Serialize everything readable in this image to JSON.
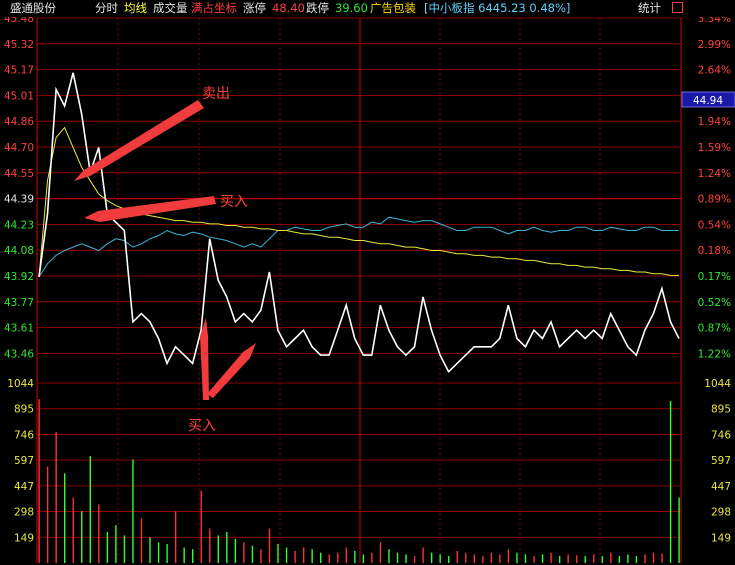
{
  "topbar": {
    "stock_name": "盛通股份",
    "timeshare": "分时",
    "avg_line": "均线",
    "volume": "成交量",
    "full_coord": "满占坐标",
    "limit_up_label": "涨停",
    "limit_up_value": "48.40",
    "limit_down_label": "跌停",
    "limit_down_value": "39.60",
    "sector": "广告包装",
    "index_info": "[中小板指 6445.23 0.48%]",
    "stats": "统计"
  },
  "current_price_tag": "44.94",
  "price_axis_left": [
    "45.48",
    "45.32",
    "45.17",
    "45.01",
    "44.86",
    "44.70",
    "44.55",
    "44.39",
    "44.23",
    "44.08",
    "43.92",
    "43.77",
    "43.61",
    "43.46"
  ],
  "pct_axis_right": [
    "3.34%",
    "2.99%",
    "2.64%",
    "2.29%",
    "1.94%",
    "1.59%",
    "1.24%",
    "0.89%",
    "0.54%",
    "0.18%",
    "0.17%",
    "0.52%",
    "0.87%",
    "1.22%"
  ],
  "volume_axis": [
    "1044",
    "895",
    "746",
    "597",
    "447",
    "298",
    "149"
  ],
  "annotations": {
    "sell": "卖出",
    "buy_top": "买入",
    "buy_bottom": "买入"
  },
  "colors": {
    "price_line": "#ffffff",
    "avg_line": "#e8e83a",
    "index_line": "#3bb5d8",
    "grid": "#b00000",
    "up_text": "#ff4040",
    "down_text": "#2ee82e",
    "arrow": "#f03c3c",
    "vol_up": "#ff3030",
    "vol_down": "#30ff30"
  },
  "chart_data": {
    "type": "line",
    "price_range": [
      43.46,
      45.48
    ],
    "volume_range": [
      0,
      1044
    ],
    "price": [
      43.92,
      44.3,
      45.05,
      44.95,
      45.15,
      44.9,
      44.55,
      44.7,
      44.3,
      44.25,
      44.2,
      43.65,
      43.7,
      43.65,
      43.55,
      43.4,
      43.5,
      43.45,
      43.4,
      43.6,
      44.15,
      43.9,
      43.8,
      43.65,
      43.7,
      43.65,
      43.72,
      43.95,
      43.6,
      43.5,
      43.55,
      43.6,
      43.5,
      43.45,
      43.45,
      43.6,
      43.75,
      43.55,
      43.45,
      43.45,
      43.75,
      43.6,
      43.5,
      43.45,
      43.5,
      43.8,
      43.6,
      43.45,
      43.35,
      43.4,
      43.45,
      43.5,
      43.5,
      43.5,
      43.55,
      43.75,
      43.55,
      43.5,
      43.6,
      43.55,
      43.65,
      43.5,
      43.55,
      43.6,
      43.55,
      43.6,
      43.55,
      43.7,
      43.6,
      43.5,
      43.45,
      43.6,
      43.7,
      43.85,
      43.65,
      43.55
    ],
    "avg": [
      43.92,
      44.5,
      44.76,
      44.82,
      44.7,
      44.58,
      44.5,
      44.42,
      44.38,
      44.35,
      44.33,
      44.31,
      44.3,
      44.29,
      44.28,
      44.27,
      44.26,
      44.26,
      44.25,
      44.25,
      44.24,
      44.24,
      44.23,
      44.23,
      44.22,
      44.22,
      44.21,
      44.21,
      44.2,
      44.2,
      44.19,
      44.18,
      44.18,
      44.17,
      44.16,
      44.16,
      44.15,
      44.14,
      44.14,
      44.13,
      44.12,
      44.12,
      44.11,
      44.1,
      44.1,
      44.09,
      44.08,
      44.08,
      44.07,
      44.06,
      44.06,
      44.05,
      44.05,
      44.04,
      44.04,
      44.03,
      44.03,
      44.02,
      44.02,
      44.01,
      44.0,
      44.0,
      43.99,
      43.99,
      43.98,
      43.98,
      43.97,
      43.97,
      43.96,
      43.96,
      43.95,
      43.95,
      43.94,
      43.94,
      43.93,
      43.93
    ],
    "index": [
      43.92,
      44.0,
      44.05,
      44.08,
      44.1,
      44.12,
      44.1,
      44.08,
      44.12,
      44.15,
      44.14,
      44.1,
      44.12,
      44.15,
      44.17,
      44.2,
      44.18,
      44.17,
      44.19,
      44.18,
      44.16,
      44.15,
      44.14,
      44.12,
      44.1,
      44.12,
      44.1,
      44.15,
      44.2,
      44.2,
      44.22,
      44.21,
      44.2,
      44.2,
      44.22,
      44.23,
      44.24,
      44.22,
      44.22,
      44.25,
      44.24,
      44.28,
      44.27,
      44.26,
      44.25,
      44.26,
      44.26,
      44.24,
      44.22,
      44.2,
      44.2,
      44.22,
      44.22,
      44.22,
      44.2,
      44.18,
      44.2,
      44.2,
      44.22,
      44.2,
      44.19,
      44.2,
      44.2,
      44.22,
      44.22,
      44.2,
      44.2,
      44.22,
      44.21,
      44.2,
      44.2,
      44.22,
      44.22,
      44.2,
      44.2,
      44.2
    ],
    "volume": [
      950,
      560,
      760,
      520,
      380,
      300,
      620,
      340,
      180,
      220,
      160,
      600,
      260,
      150,
      120,
      110,
      300,
      90,
      80,
      420,
      200,
      160,
      180,
      140,
      120,
      100,
      80,
      200,
      110,
      90,
      70,
      90,
      80,
      60,
      50,
      60,
      90,
      70,
      50,
      60,
      120,
      80,
      60,
      50,
      40,
      90,
      60,
      50,
      40,
      70,
      60,
      50,
      40,
      60,
      50,
      80,
      60,
      50,
      40,
      50,
      60,
      40,
      50,
      45,
      40,
      50,
      40,
      60,
      40,
      50,
      40,
      50,
      60,
      55,
      940,
      380
    ]
  }
}
